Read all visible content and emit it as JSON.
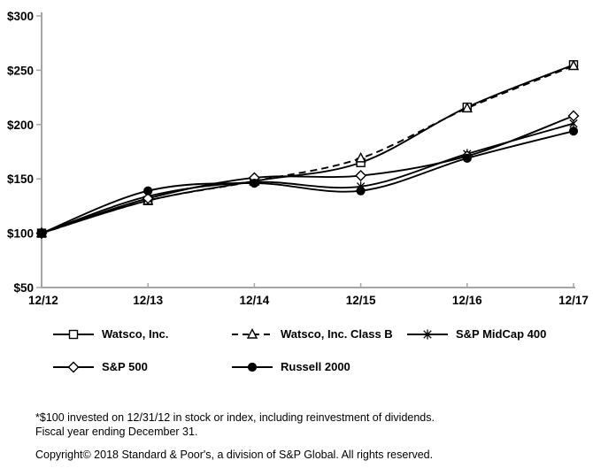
{
  "chart_data": {
    "type": "line",
    "title": "",
    "xlabel": "",
    "ylabel": "",
    "x_labels": [
      "12/12",
      "12/13",
      "12/14",
      "12/15",
      "12/16",
      "12/17"
    ],
    "y_ticks": [
      {
        "label": "$50",
        "value": 50
      },
      {
        "label": "$100",
        "value": 100
      },
      {
        "label": "$150",
        "value": 150
      },
      {
        "label": "$200",
        "value": 200
      },
      {
        "label": "$250",
        "value": 250
      },
      {
        "label": "$300",
        "value": 300
      }
    ],
    "ylim": [
      50,
      300
    ],
    "grid": false,
    "legend_position": "below",
    "axis_color": "#a6a6a6",
    "line_color": "#000000",
    "series": [
      {
        "name": "Watsco, Inc.",
        "marker": "square",
        "dashed": false,
        "values": [
          100,
          130,
          148,
          165,
          216,
          255
        ]
      },
      {
        "name": "Watsco, Inc. Class B",
        "marker": "triangle",
        "dashed": true,
        "values": [
          100,
          130,
          148,
          169,
          215,
          254
        ]
      },
      {
        "name": "S&P MidCap 400",
        "marker": "star",
        "dashed": false,
        "values": [
          100,
          134,
          147,
          143,
          173,
          201
        ]
      },
      {
        "name": "S&P 500",
        "marker": "diamond",
        "dashed": false,
        "values": [
          100,
          132,
          151,
          153,
          171,
          208
        ]
      },
      {
        "name": "Russell 2000",
        "marker": "circle",
        "dashed": false,
        "values": [
          100,
          139,
          146,
          139,
          169,
          194
        ]
      }
    ]
  },
  "footnote": {
    "line1": "*$100 invested on 12/31/12 in stock or index, including reinvestment of dividends.",
    "line2": "Fiscal year ending December 31."
  },
  "copyright": "Copyright© 2018 Standard & Poor's, a division of S&P Global. All rights reserved."
}
